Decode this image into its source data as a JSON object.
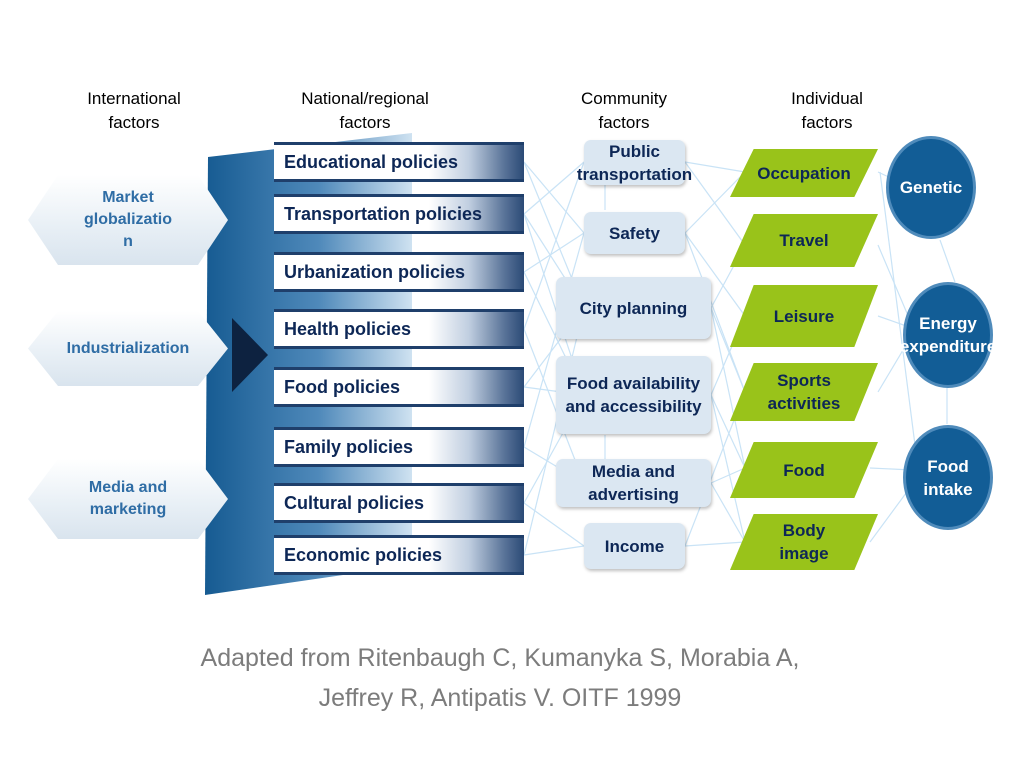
{
  "headers": {
    "international": [
      "International",
      "factors"
    ],
    "national": [
      "National/regional",
      "factors"
    ],
    "community": [
      "Community",
      "factors"
    ],
    "individual": [
      "Individual",
      "factors"
    ]
  },
  "international_factors": {
    "market": [
      "Market",
      "globalizatio",
      "n"
    ],
    "industrialization": [
      "Industrialization"
    ],
    "media": [
      "Media and",
      "marketing"
    ]
  },
  "national_policies": [
    "Educational policies",
    "Transportation policies",
    "Urbanization policies",
    "Health policies",
    "Food policies",
    "Family policies",
    "Cultural policies",
    "Economic policies"
  ],
  "community_factors": {
    "public_transport": [
      "Public",
      "transportation"
    ],
    "safety": [
      "Safety"
    ],
    "city_planning": [
      "City planning"
    ],
    "food_availability": [
      "Food availability",
      "and accessibility"
    ],
    "media_advertising": [
      "Media and",
      "advertising"
    ],
    "income": [
      "Income"
    ]
  },
  "individual_factors": {
    "occupation": [
      "Occupation"
    ],
    "travel": [
      "Travel"
    ],
    "leisure": [
      "Leisure"
    ],
    "sports": [
      "Sports",
      "activities"
    ],
    "food": [
      "Food"
    ],
    "body_image": [
      "Body",
      "image"
    ]
  },
  "outcomes": {
    "genetic": [
      "Genetic"
    ],
    "energy": [
      "Energy",
      "expenditure"
    ],
    "food_intake": [
      "Food",
      "intake"
    ]
  },
  "caption": [
    "Adapted from Ritenbaugh C, Kumanyka S, Morabia A,",
    "Jeffrey R, Antipatis V.  OITF 1999"
  ],
  "colors": {
    "policy_text": "#0d2756",
    "international_text": "#2f6da5",
    "individual_fill": "#99c31a",
    "circle_fill": "#125d96",
    "arrow_dark": "#0d2240",
    "connector": "#c9e3f6"
  }
}
